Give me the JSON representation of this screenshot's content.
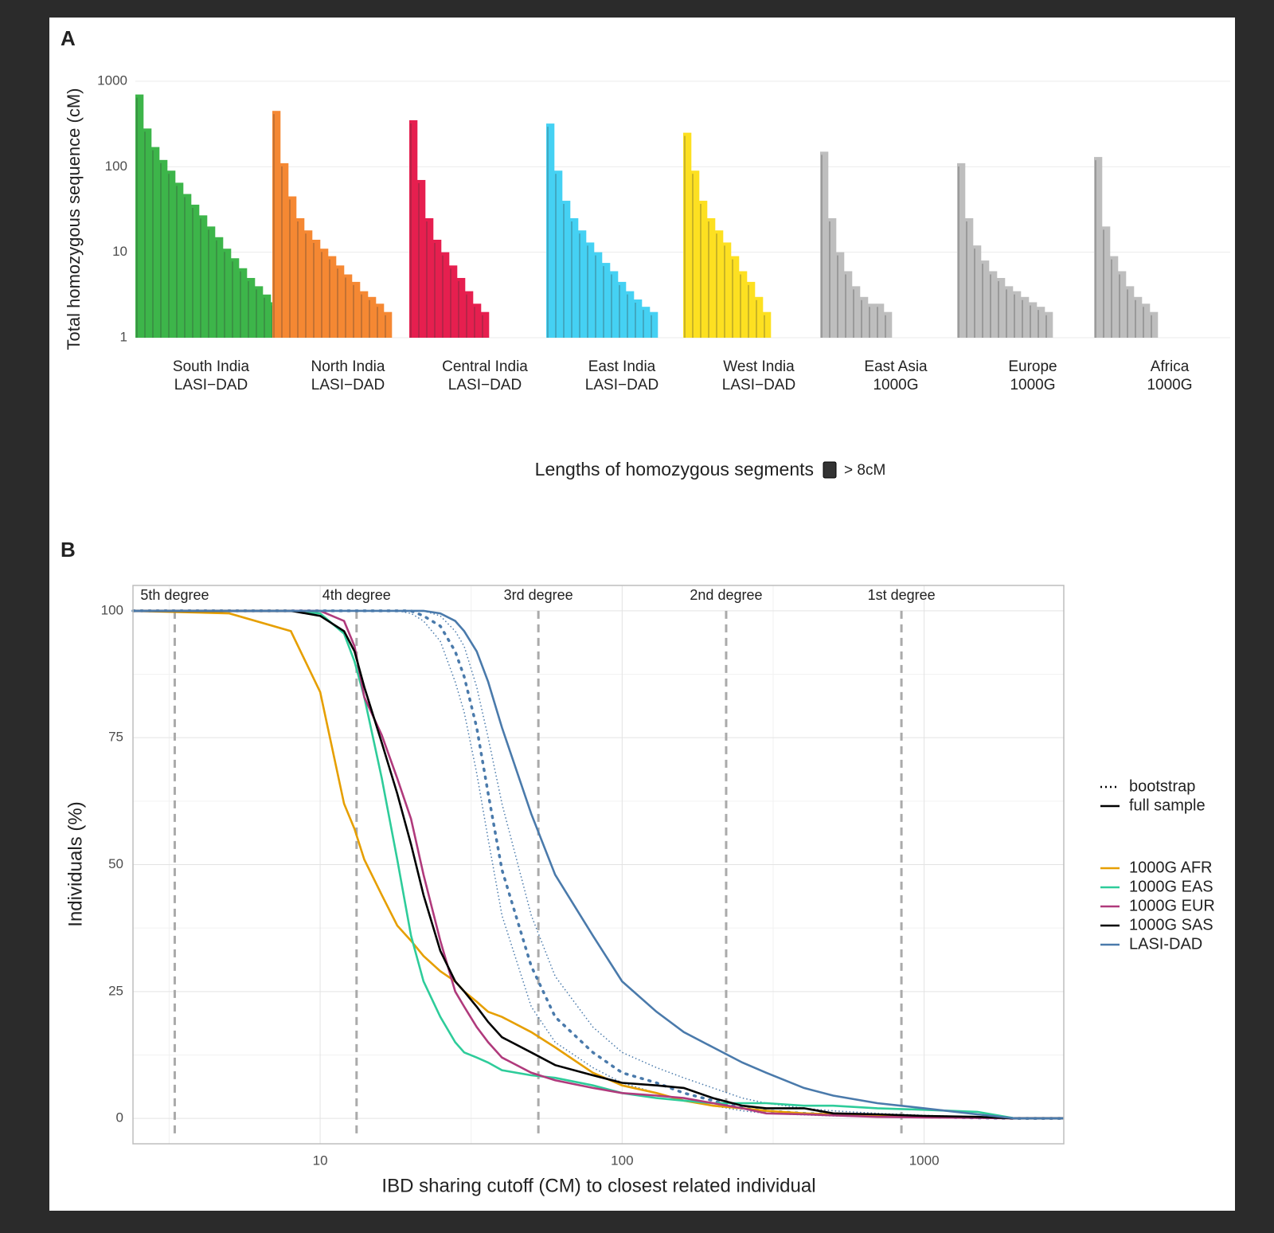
{
  "chart_data": [
    {
      "type": "ranked-bar",
      "panel_letter": "A",
      "y_label": "Total homozygous sequence (cM)",
      "log_y": true,
      "ylim": [
        1,
        1000
      ],
      "yticks": [
        1,
        10,
        100,
        1000
      ],
      "grid": true,
      "legend_title": "Lengths of homozygous segments",
      "legend_label": "> 8cM",
      "legend_color": "#333333",
      "panels": [
        {
          "label": "South India",
          "source": "LASI−DAD",
          "color": "#3db54a",
          "values": [
            700,
            280,
            170,
            120,
            90,
            65,
            48,
            36,
            27,
            20,
            15,
            11,
            8.5,
            6.5,
            5,
            4,
            3.2,
            2.6,
            2.2,
            2
          ]
        },
        {
          "label": "North India",
          "source": "LASI−DAD",
          "color": "#f58833",
          "values": [
            450,
            110,
            45,
            25,
            18,
            14,
            11,
            9,
            7,
            5.5,
            4.5,
            3.5,
            3,
            2.5,
            2
          ]
        },
        {
          "label": "Central India",
          "source": "LASI−DAD",
          "color": "#e61f4f",
          "values": [
            350,
            70,
            25,
            14,
            10,
            7,
            5,
            3.5,
            2.5,
            2
          ]
        },
        {
          "label": "East India",
          "source": "LASI−DAD",
          "color": "#45d1f3",
          "values": [
            320,
            90,
            40,
            25,
            18,
            13,
            10,
            7.5,
            6,
            4.5,
            3.5,
            2.8,
            2.3,
            2
          ]
        },
        {
          "label": "West India",
          "source": "LASI−DAD",
          "color": "#fde021",
          "values": [
            250,
            90,
            40,
            25,
            18,
            13,
            9,
            6,
            4.5,
            3,
            2
          ]
        },
        {
          "label": "East Asia",
          "source": "1000G",
          "color": "#bebebe",
          "values": [
            150,
            25,
            10,
            6,
            4,
            3,
            2.5,
            2.5,
            2
          ]
        },
        {
          "label": "Europe",
          "source": "1000G",
          "color": "#bebebe",
          "values": [
            110,
            25,
            12,
            8,
            6,
            5,
            4,
            3.5,
            3,
            2.6,
            2.3,
            2
          ]
        },
        {
          "label": "Africa",
          "source": "1000G",
          "color": "#bebebe",
          "values": [
            130,
            20,
            9,
            6,
            4,
            3,
            2.5,
            2
          ]
        }
      ]
    },
    {
      "type": "line",
      "panel_letter": "B",
      "x_label": "IBD sharing cutoff (CM) to closest related individual",
      "y_label": "Individuals (%)",
      "log_x": true,
      "xlim": [
        2.4,
        2900
      ],
      "ylim": [
        -5,
        105
      ],
      "xticks": [
        10,
        100,
        1000
      ],
      "yticks": [
        0,
        25,
        50,
        75,
        100
      ],
      "grid": true,
      "reference_lines": [
        {
          "x": 3.3,
          "label": "5th degree"
        },
        {
          "x": 13.2,
          "label": "4th degree"
        },
        {
          "x": 52.8,
          "label": "3rd degree"
        },
        {
          "x": 221,
          "label": "2nd degree"
        },
        {
          "x": 841,
          "label": "1st degree"
        }
      ],
      "linetype_legend": [
        "bootstrap",
        "full sample"
      ],
      "x": [
        2.4,
        5,
        8,
        10,
        12,
        13,
        14,
        16,
        18,
        20,
        22,
        25,
        28,
        30,
        33,
        36,
        40,
        50,
        60,
        80,
        100,
        130,
        160,
        200,
        250,
        300,
        400,
        500,
        700,
        1000,
        1500,
        2000,
        2900
      ],
      "series": [
        {
          "name": "1000G AFR",
          "color": "#e69f00",
          "values": [
            100,
            99.5,
            96,
            84,
            62,
            57,
            51,
            44,
            38,
            35,
            32,
            29,
            27,
            25,
            23,
            21,
            20,
            17,
            14,
            9,
            6.5,
            5,
            3.5,
            2.5,
            2,
            1.5,
            1,
            0.8,
            0.5,
            0.3,
            0.2,
            0,
            0
          ]
        },
        {
          "name": "1000G EAS",
          "color": "#2ecc9a",
          "values": [
            100,
            100,
            100,
            99.5,
            95.5,
            90,
            83,
            67,
            51,
            36,
            27,
            20,
            15,
            13,
            12,
            11,
            9.5,
            8.5,
            8,
            6.5,
            5,
            4,
            3.5,
            3,
            3,
            3,
            2.5,
            2.5,
            2,
            1.7,
            1.3,
            0,
            0
          ]
        },
        {
          "name": "1000G EUR",
          "color": "#b03a7c",
          "values": [
            100,
            100,
            100,
            100,
            98,
            93,
            83,
            75.5,
            67,
            59,
            48,
            35,
            25,
            22,
            18,
            15,
            12,
            9,
            7.5,
            6,
            5,
            4.5,
            4,
            3,
            2,
            1,
            0.8,
            0.6,
            0.3,
            0.2,
            0.1,
            0,
            0
          ]
        },
        {
          "name": "1000G SAS",
          "color": "#000000",
          "values": [
            100,
            100,
            100,
            99,
            96,
            92,
            85,
            74,
            64,
            54,
            44,
            33,
            27,
            25,
            22,
            19,
            16,
            13,
            10.5,
            8.5,
            7,
            6.5,
            6,
            4,
            2.5,
            2,
            2,
            1,
            0.8,
            0.5,
            0.3,
            0,
            0
          ]
        },
        {
          "name": "LASI-DAD",
          "color": "#4a7aab",
          "values": [
            100,
            100,
            100,
            100,
            100,
            100,
            100,
            100,
            100,
            100,
            100,
            99.5,
            98,
            96,
            92,
            86,
            77,
            60,
            48,
            36,
            27,
            21,
            17,
            14,
            11,
            9,
            6,
            4.5,
            3,
            2,
            0.8,
            0,
            0
          ]
        }
      ],
      "bootstrap": {
        "color": "#4a7aab",
        "values": [
          100,
          100,
          100,
          100,
          100,
          100,
          100,
          100,
          100,
          100,
          99,
          97,
          92,
          87,
          77,
          64,
          49,
          30,
          20,
          13,
          9,
          7,
          5,
          3.5,
          2,
          1.5,
          1,
          0.8,
          0.5,
          0.3,
          0.1,
          0,
          0
        ],
        "lower": [
          100,
          100,
          100,
          100,
          100,
          100,
          100,
          100,
          100,
          99.5,
          98,
          94,
          86,
          80,
          68,
          55,
          40,
          22,
          15,
          10,
          7,
          5,
          3.5,
          2.5,
          1.5,
          1,
          0.7,
          0.5,
          0.3,
          0.2,
          0,
          0,
          0
        ],
        "upper": [
          100,
          100,
          100,
          100,
          100,
          100,
          100,
          100,
          100,
          100,
          100,
          99,
          96,
          93,
          85,
          75,
          62,
          40,
          28,
          18,
          13,
          10,
          8,
          6,
          4,
          3,
          2,
          1.5,
          1,
          0.6,
          0.3,
          0,
          0
        ]
      }
    }
  ]
}
